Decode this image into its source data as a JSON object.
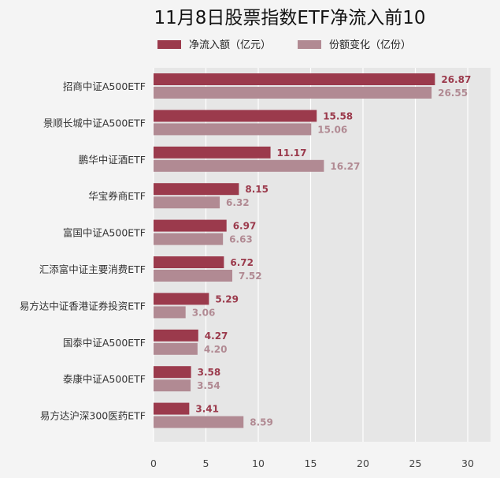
{
  "chart_data": {
    "type": "bar",
    "orientation": "horizontal",
    "title": "11月8日股票指数ETF净流入前10",
    "xlim": [
      0,
      32
    ],
    "xticks": [
      0,
      5,
      10,
      15,
      20,
      25,
      30
    ],
    "grid": true,
    "legend_position": "top",
    "categories": [
      "招商中证A500ETF",
      "景顺长城中证A500ETF",
      "鹏华中证酒ETF",
      "华宝券商ETF",
      "富国中证A500ETF",
      "汇添富中证主要消费ETF",
      "易方达中证香港证券投资ETF",
      "国泰中证A500ETF",
      "泰康中证A500ETF",
      "易方达沪深300医药ETF"
    ],
    "series": [
      {
        "name": "净流入额（亿元）",
        "color": "#9b3a4c",
        "values": [
          26.87,
          15.58,
          11.17,
          8.15,
          6.97,
          6.72,
          5.29,
          4.27,
          3.58,
          3.41
        ]
      },
      {
        "name": "份额变化（亿份）",
        "color": "#b18a93",
        "values": [
          26.55,
          15.06,
          16.27,
          6.32,
          6.63,
          7.52,
          3.06,
          4.2,
          3.54,
          8.59
        ]
      }
    ]
  }
}
